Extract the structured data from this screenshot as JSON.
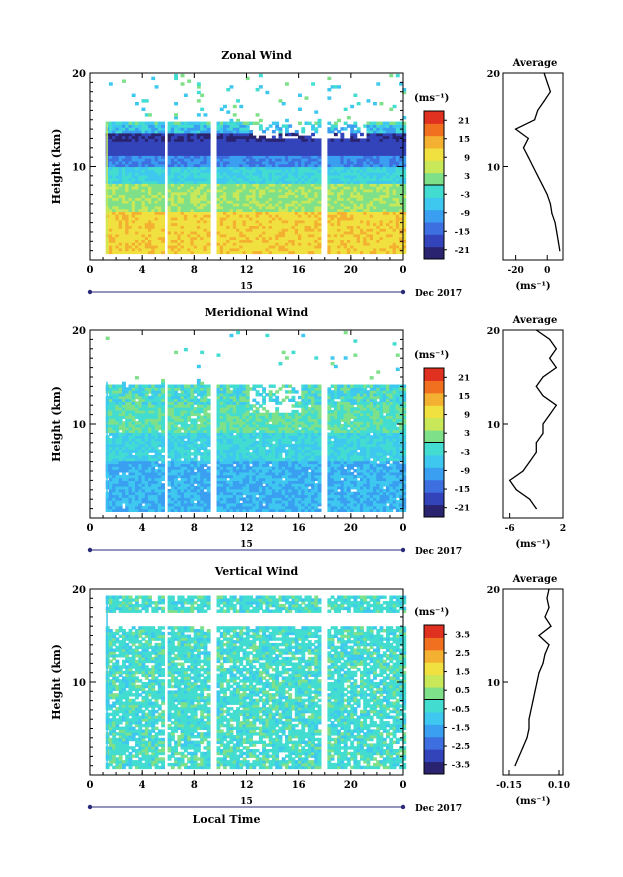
{
  "chart_data": [
    {
      "type": "heatmap",
      "title": "Zonal Wind",
      "ylabel": "Height (km)",
      "xlabel": "",
      "xlim": [
        0,
        24
      ],
      "ylim": [
        0,
        20
      ],
      "xticks": [
        "0",
        "4",
        "8",
        "12",
        "16",
        "20",
        "0"
      ],
      "yticks": [
        "10",
        "20"
      ],
      "date_label": "15",
      "month_label": "Dec 2017",
      "colorbar": {
        "unit": "(ms⁻¹)",
        "ticks": [
          "21",
          "15",
          "9",
          "3",
          "-3",
          "-9",
          "-15",
          "-21"
        ],
        "range": [
          -24,
          24
        ]
      },
      "profile": {
        "title": "Average",
        "xunit": "(ms⁻¹)",
        "xticks": [
          "-20",
          "0"
        ],
        "xlim": [
          -28,
          10
        ],
        "heights": [
          1,
          2,
          3,
          4,
          5,
          6,
          7,
          8,
          9,
          10,
          11,
          12,
          13,
          14,
          15,
          16,
          17,
          18,
          19,
          20
        ],
        "values": [
          8,
          7,
          6,
          5,
          3,
          2,
          0,
          -3,
          -6,
          -9,
          -12,
          -15,
          -12,
          -20,
          -8,
          -6,
          -2,
          2,
          0,
          -2
        ]
      },
      "data_gaps_hours": [
        [
          0,
          1.2
        ],
        [
          5.5,
          5.9
        ],
        [
          9.1,
          9.5
        ],
        [
          17.7,
          18.1
        ]
      ]
    },
    {
      "type": "heatmap",
      "title": "Meridional Wind",
      "ylabel": "Height (km)",
      "xlabel": "",
      "xlim": [
        0,
        24
      ],
      "ylim": [
        0,
        20
      ],
      "xticks": [
        "0",
        "4",
        "8",
        "12",
        "16",
        "20",
        "0"
      ],
      "yticks": [
        "10",
        "20"
      ],
      "date_label": "15",
      "month_label": "Dec 2017",
      "colorbar": {
        "unit": "(ms⁻¹)",
        "ticks": [
          "21",
          "15",
          "9",
          "3",
          "-3",
          "-9",
          "-15",
          "-21"
        ],
        "range": [
          -24,
          24
        ]
      },
      "profile": {
        "title": "Average",
        "xunit": "(ms⁻¹)",
        "xticks": [
          "-6",
          "2"
        ],
        "xlim": [
          -7,
          2
        ],
        "heights": [
          1,
          2,
          3,
          4,
          5,
          6,
          7,
          8,
          9,
          10,
          11,
          12,
          13,
          14,
          15,
          16,
          17,
          18,
          19,
          20
        ],
        "values": [
          -2,
          -3,
          -5,
          -6,
          -4,
          -3,
          -2,
          -2,
          -1,
          -1,
          0,
          1,
          -1,
          -2,
          -1,
          1,
          0,
          1,
          0,
          -2
        ]
      },
      "data_gaps_hours": [
        [
          0,
          1.2
        ],
        [
          5.5,
          5.9
        ],
        [
          9.1,
          9.5
        ],
        [
          17.7,
          18.1
        ]
      ]
    },
    {
      "type": "heatmap",
      "title": "Vertical Wind",
      "ylabel": "Height (km)",
      "xlabel": "Local Time",
      "xlim": [
        0,
        24
      ],
      "ylim": [
        0,
        20
      ],
      "xticks": [
        "0",
        "4",
        "8",
        "12",
        "16",
        "20",
        "0"
      ],
      "yticks": [
        "10",
        "20"
      ],
      "date_label": "15",
      "month_label": "Dec 2017",
      "colorbar": {
        "unit": "(ms⁻¹)",
        "ticks": [
          "3.5",
          "2.5",
          "1.5",
          "0.5",
          "-0.5",
          "-1.5",
          "-2.5",
          "-3.5"
        ],
        "range": [
          -4,
          4
        ]
      },
      "profile": {
        "title": "Average",
        "xunit": "(ms⁻¹)",
        "xticks": [
          "-0.15",
          "0.10"
        ],
        "xlim": [
          -0.18,
          0.12
        ],
        "heights": [
          1,
          2,
          3,
          4,
          5,
          6,
          7,
          8,
          9,
          10,
          11,
          12,
          13,
          14,
          15,
          16,
          17,
          18,
          19,
          20
        ],
        "values": [
          -0.12,
          -0.1,
          -0.08,
          -0.06,
          -0.05,
          -0.05,
          -0.04,
          -0.03,
          -0.02,
          -0.01,
          0.0,
          0.02,
          0.03,
          0.05,
          0.0,
          0.06,
          0.03,
          0.05,
          0.04,
          0.05
        ]
      },
      "data_gaps_hours": [
        [
          0,
          1.2
        ],
        [
          5.5,
          5.9
        ],
        [
          9.1,
          9.5
        ],
        [
          17.7,
          18.1
        ]
      ]
    }
  ],
  "colors": {
    "palette": [
      "#2a2470",
      "#3344bb",
      "#3d6fe0",
      "#3a9ff0",
      "#3ec8f0",
      "#42ddd0",
      "#7ee088",
      "#c8e85a",
      "#f0e040",
      "#f4b030",
      "#f07020",
      "#e03020"
    ]
  }
}
